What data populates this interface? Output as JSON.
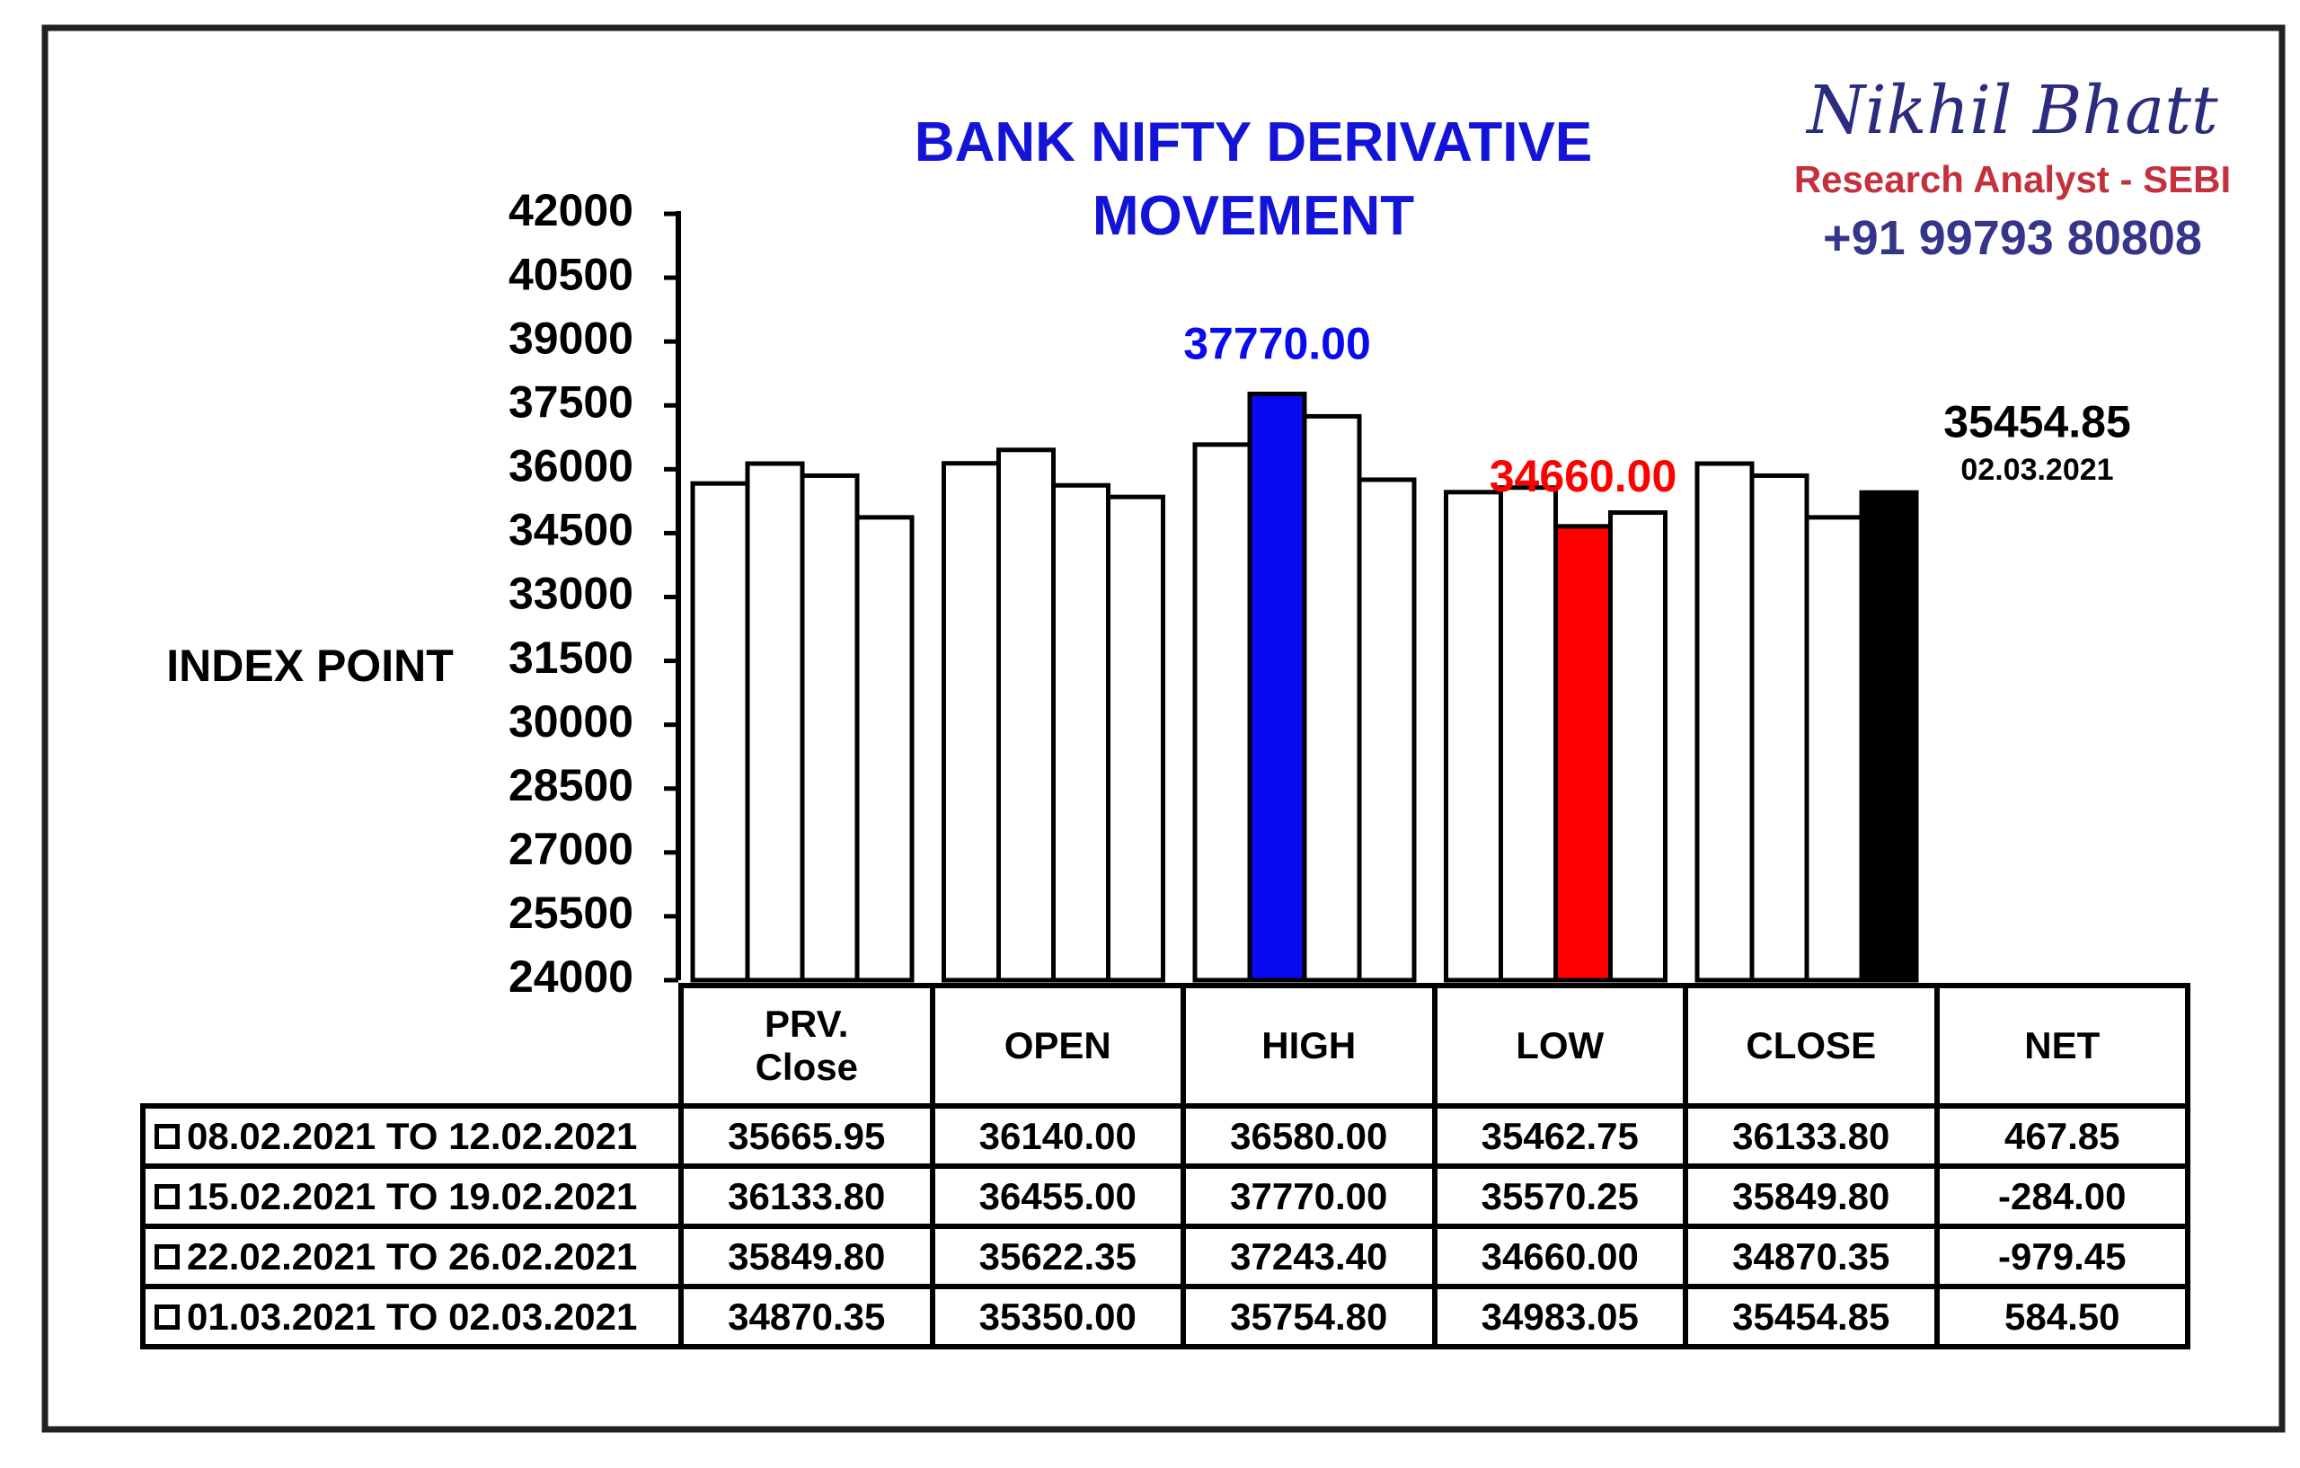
{
  "chart_data": {
    "type": "bar",
    "title": "BANK NIFTY DERIVATIVE MOVEMENT",
    "y_label": "INDEX POINT",
    "categories": [
      "PRV. Close",
      "OPEN",
      "HIGH",
      "LOW",
      "CLOSE",
      "NET"
    ],
    "series": [
      {
        "name": "08.02.2021 TO 12.02.2021",
        "colors": [
          "#ffffff",
          "#ffffff",
          "#ffffff",
          "#ffffff",
          "#ffffff",
          "#ffffff"
        ],
        "values": [
          35665.95,
          36140,
          36580,
          35462.75,
          36133.8,
          467.85
        ],
        "value_labels": [
          "35665.95",
          "36140.00",
          "36580.00",
          "35462.75",
          "36133.80",
          "467.85"
        ]
      },
      {
        "name": "15.02.2021 TO 19.02.2021",
        "colors": [
          "#ffffff",
          "#ffffff",
          "#0a0af0",
          "#ffffff",
          "#ffffff",
          "#ffffff"
        ],
        "values": [
          36133.8,
          36455,
          37770,
          35570.25,
          35849.8,
          -284
        ],
        "value_labels": [
          "36133.80",
          "36455.00",
          "37770.00",
          "35570.25",
          "35849.80",
          "-284.00"
        ]
      },
      {
        "name": "22.02.2021 TO 26.02.2021",
        "colors": [
          "#ffffff",
          "#ffffff",
          "#ffffff",
          "#ff0000",
          "#ffffff",
          "#ffffff"
        ],
        "values": [
          35849.8,
          35622.35,
          37243.4,
          34660,
          34870.35,
          -979.45
        ],
        "value_labels": [
          "35849.80",
          "35622.35",
          "37243.40",
          "34660.00",
          "34870.35",
          "-979.45"
        ]
      },
      {
        "name": "01.03.2021 TO 02.03.2021",
        "colors": [
          "#ffffff",
          "#ffffff",
          "#ffffff",
          "#ffffff",
          "#000000",
          "#ffffff"
        ],
        "values": [
          34870.35,
          35350,
          35754.8,
          34983.05,
          35454.85,
          584.5
        ],
        "value_labels": [
          "34870.35",
          "35350.00",
          "35754.80",
          "34983.05",
          "35454.85",
          "584.50"
        ]
      }
    ],
    "annotation": "02.03.2021",
    "ylim": [
      24000,
      42000
    ],
    "yticks": [
      24000,
      25500,
      27000,
      28500,
      30000,
      31500,
      33000,
      34500,
      36000,
      37500,
      39000,
      40500,
      42000
    ]
  },
  "brand": {
    "name": "Nikhil Bhatt",
    "role": "Research Analyst - SEBI",
    "phone": "+91 99793 80808"
  }
}
